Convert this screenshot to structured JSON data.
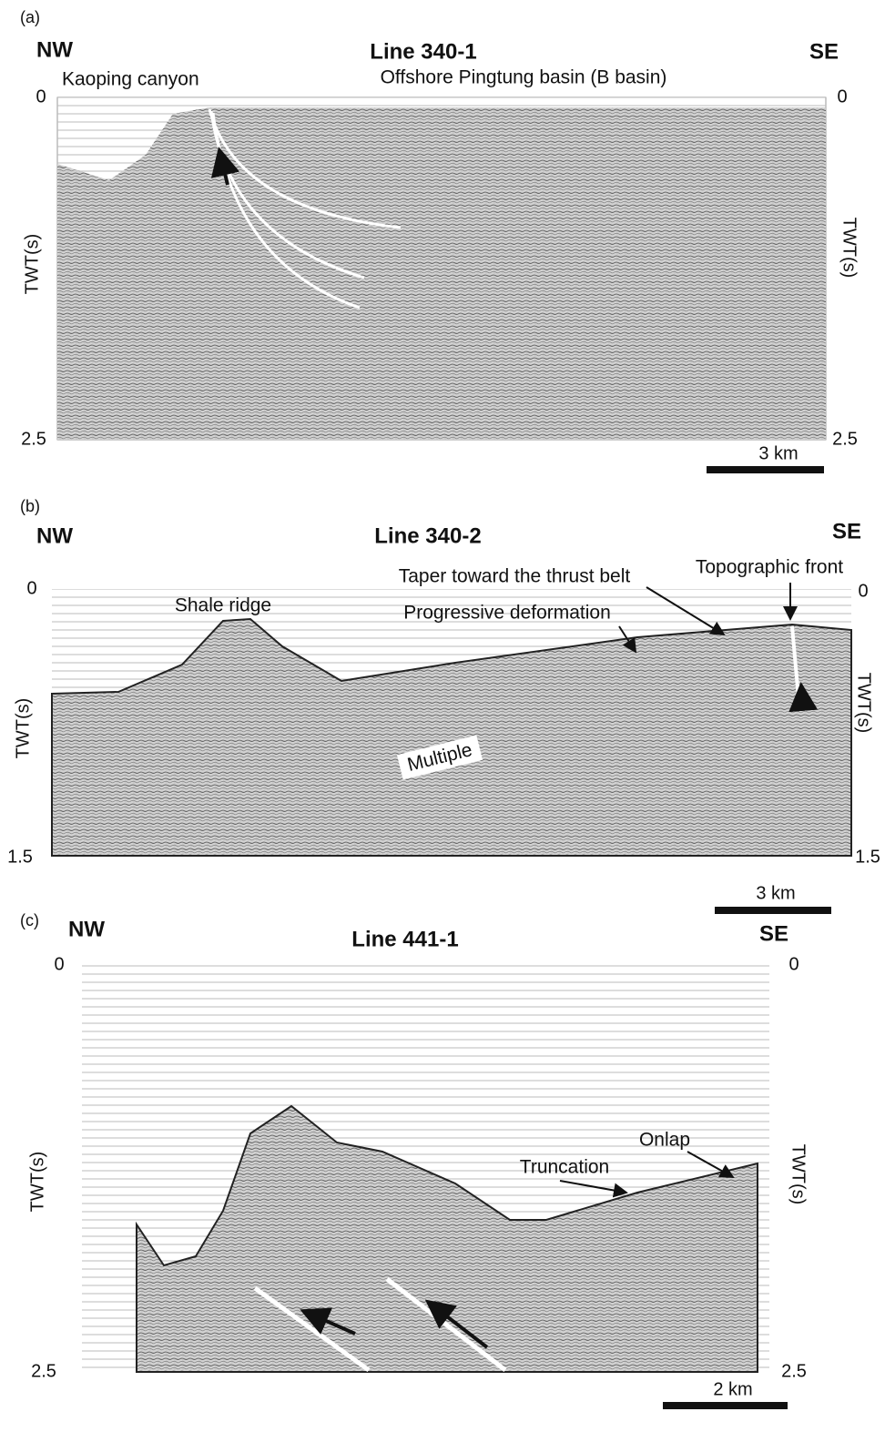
{
  "panels": [
    {
      "label": "(a)",
      "left": "NW",
      "right": "SE",
      "title": "Line 340-1",
      "axis_label": "TWT(s)",
      "top": 0,
      "bottom": 2.5,
      "scale": "3 km",
      "annotations": [
        "Kaoping canyon",
        "Offshore Pingtung basin (B basin)"
      ]
    },
    {
      "label": "(b)",
      "left": "NW",
      "right": "SE",
      "title": "Line 340-2",
      "axis_label": "TWT(s)",
      "top": 0,
      "bottom": 1.5,
      "scale": "3 km",
      "annotations": [
        "Shale ridge",
        "Taper toward the thrust belt",
        "Topographic front",
        "Progressive deformation",
        "Multiple"
      ]
    },
    {
      "label": "(c)",
      "left": "NW",
      "right": "SE",
      "title": "Line 441-1",
      "axis_label": "TWT(s)",
      "top": 0,
      "bottom": 2.5,
      "scale": "2 km",
      "annotations": [
        "Onlap",
        "Truncation"
      ]
    }
  ]
}
